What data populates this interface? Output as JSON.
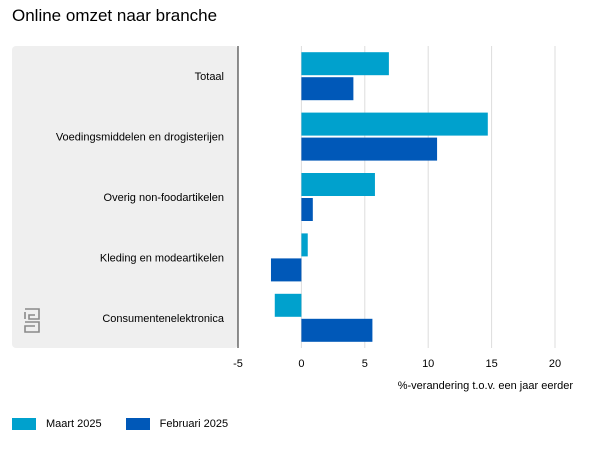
{
  "chart_data": {
    "type": "bar",
    "orientation": "horizontal",
    "title": "Online omzet naar branche",
    "xlabel": "%-verandering t.o.v. een jaar eerder",
    "ylabel": "",
    "xlim": [
      -5,
      20
    ],
    "xticks": [
      "-5",
      "0",
      "5",
      "10",
      "15",
      "20"
    ],
    "xtick_values": [
      -5,
      0,
      5,
      10,
      15,
      20
    ],
    "grid": true,
    "legend_position": "bottom-left",
    "categories": [
      "Totaal",
      "Voedingsmiddelen en drogisterijen",
      "Overig non-foodartikelen",
      "Kleding en modeartikelen",
      "Consumentenelektronica"
    ],
    "series": [
      {
        "name": "Maart 2025",
        "color": "#00a1cd",
        "values": [
          6.9,
          14.7,
          5.8,
          0.5,
          -2.1
        ]
      },
      {
        "name": "Februari 2025",
        "color": "#0058b8",
        "values": [
          4.1,
          10.7,
          0.9,
          -2.4,
          5.6
        ]
      }
    ]
  },
  "logo": {
    "icon": "cbs-logo-icon",
    "text": "cbs"
  }
}
